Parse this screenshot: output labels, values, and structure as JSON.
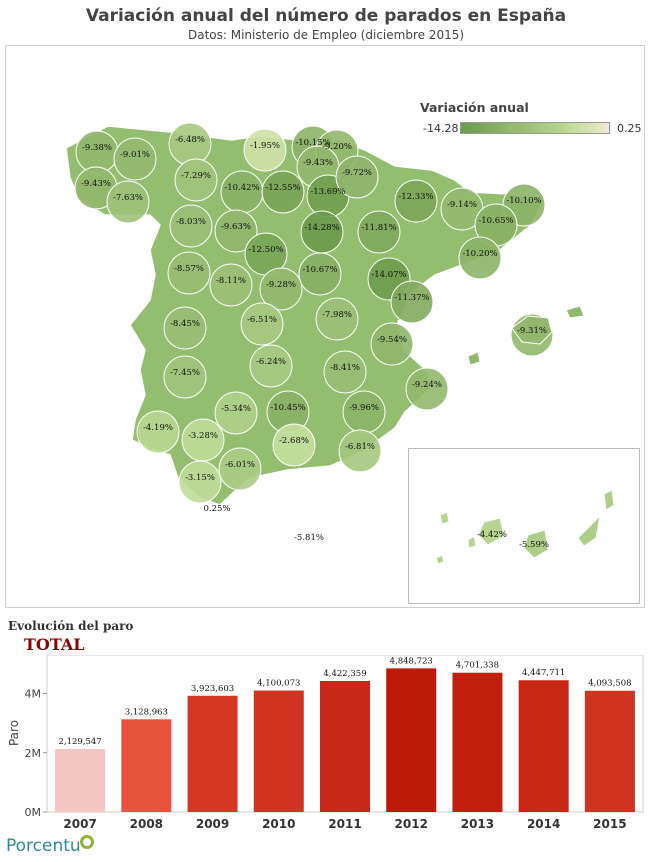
{
  "header": {
    "title": "Variación anual del número de parados en España",
    "subtitle": "Datos: Ministerio de Empleo (diciembre 2015)"
  },
  "legend": {
    "title": "Variación anual",
    "min_label": "-14.28",
    "max_label": "0.25"
  },
  "colors": {
    "map_dark": "#6d9a4b",
    "map_light": "#efe9cf",
    "bar_dark": "#be1a0a",
    "bar_light": "#f4c6c2"
  },
  "evolution": {
    "heading": "Evolución del paro",
    "subheading": "TOTAL"
  },
  "logo": {
    "text": "Porcentu"
  },
  "chart_data": [
    {
      "type": "heatmap",
      "title": "Variación anual del número de parados en España",
      "subtitle": "Datos: Ministerio de Empleo (diciembre 2015)",
      "legend_title": "Variación anual",
      "color_range": [
        -14.28,
        0.25
      ],
      "legend_placement": "top-right",
      "value_labels": [
        "-9.38%",
        "-9.01%",
        "-6.48%",
        "-1.95%",
        "-10.15%",
        "-9.20%",
        "-9.43%",
        "-9.43%",
        "-7.63%",
        "-7.29%",
        "-10.42%",
        "-12.55%",
        "-13.69%",
        "-9.72%",
        "-12.33%",
        "-9.14%",
        "-10.10%",
        "-10.65%",
        "-8.03%",
        "-9.63%",
        "-14.28%",
        "-11.81%",
        "-12.50%",
        "-10.67%",
        "-10.20%",
        "-14.07%",
        "-8.57%",
        "-8.11%",
        "-9.28%",
        "-11.37%",
        "-9.31%",
        "-8.45%",
        "-6.51%",
        "-7.98%",
        "-9.54%",
        "-6.24%",
        "-8.41%",
        "-7.45%",
        "-9.24%",
        "-5.34%",
        "-10.45%",
        "-9.96%",
        "-4.19%",
        "-3.28%",
        "-2.68%",
        "-6.81%",
        "-6.01%",
        "-3.15%",
        "0.25%",
        "-5.81%",
        "-4.42%",
        "-5.59%"
      ]
    },
    {
      "type": "bar",
      "title": "TOTAL",
      "ylabel": "Paro",
      "categories": [
        "2007",
        "2008",
        "2009",
        "2010",
        "2011",
        "2012",
        "2013",
        "2014",
        "2015"
      ],
      "values": [
        2129547,
        3128963,
        3923603,
        4100073,
        4422359,
        4848723,
        4701338,
        4447711,
        4093508
      ],
      "data_labels": [
        "2,129,547",
        "3,128,963",
        "3,923,603",
        "4,100,073",
        "4,422,359",
        "4,848,723",
        "4,701,338",
        "4,447,711",
        "4,093,508"
      ],
      "yticks": [
        0,
        2000000,
        4000000
      ],
      "ytick_labels": [
        "0M",
        "2M",
        "4M"
      ],
      "ylim": [
        0,
        5300000
      ],
      "grid": false
    }
  ]
}
